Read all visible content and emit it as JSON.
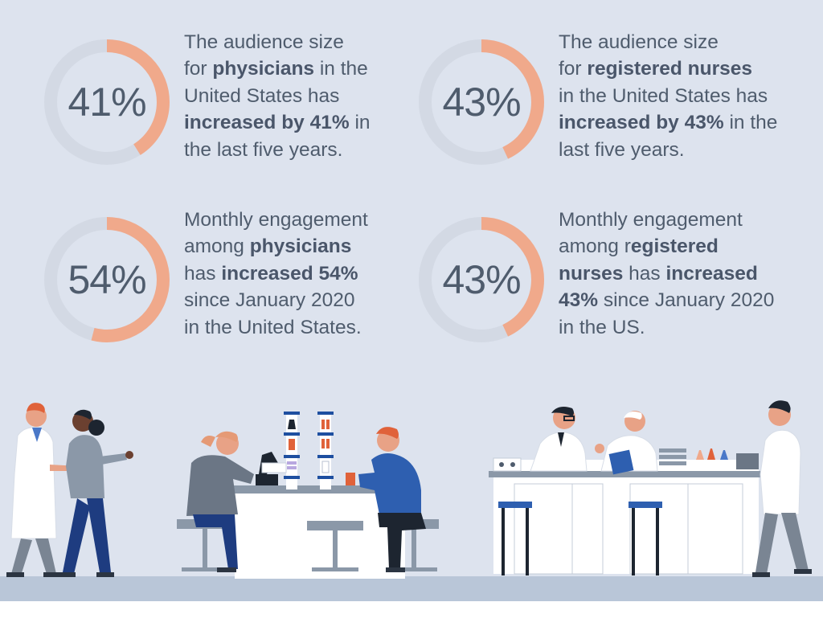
{
  "colors": {
    "ring_track": "#d3d9e4",
    "ring_fill": "#f0a98b",
    "text": "#4f5c6d",
    "background": "#dde3ee"
  },
  "stats": [
    {
      "id": "physicians-audience",
      "percent_label": "41%",
      "fraction": 0.41,
      "lines": [
        [
          {
            "t": "The audience size",
            "b": false
          }
        ],
        [
          {
            "t": "for ",
            "b": false
          },
          {
            "t": "physicians",
            "b": true
          },
          {
            "t": " in the",
            "b": false
          }
        ],
        [
          {
            "t": "United States has",
            "b": false
          }
        ],
        [
          {
            "t": "increased by 41%",
            "b": true
          },
          {
            "t": " in",
            "b": false
          }
        ],
        [
          {
            "t": "the last five years.",
            "b": false
          }
        ]
      ]
    },
    {
      "id": "nurses-audience",
      "percent_label": "43%",
      "fraction": 0.43,
      "lines": [
        [
          {
            "t": "The audience size",
            "b": false
          }
        ],
        [
          {
            "t": "for ",
            "b": false
          },
          {
            "t": "registered nurses",
            "b": true
          }
        ],
        [
          {
            "t": "in the United States has",
            "b": false
          }
        ],
        [
          {
            "t": "increased by 43%",
            "b": true
          },
          {
            "t": " in the",
            "b": false
          }
        ],
        [
          {
            "t": "last five years.",
            "b": false
          }
        ]
      ]
    },
    {
      "id": "physicians-engagement",
      "percent_label": "54%",
      "fraction": 0.54,
      "lines": [
        [
          {
            "t": "Monthly engagement",
            "b": false
          }
        ],
        [
          {
            "t": "among ",
            "b": false
          },
          {
            "t": "physicians",
            "b": true
          }
        ],
        [
          {
            "t": "has ",
            "b": false
          },
          {
            "t": "increased 54%",
            "b": true
          }
        ],
        [
          {
            "t": "since January 2020",
            "b": false
          }
        ],
        [
          {
            "t": "in the United States.",
            "b": false
          }
        ]
      ]
    },
    {
      "id": "nurses-engagement",
      "percent_label": "43%",
      "fraction": 0.43,
      "lines": [
        [
          {
            "t": "Monthly engagement",
            "b": false
          }
        ],
        [
          {
            "t": "among r",
            "b": false
          },
          {
            "t": "egistered",
            "b": true
          }
        ],
        [
          {
            "t": "nurses",
            "b": true
          },
          {
            "t": " has ",
            "b": false
          },
          {
            "t": "increased",
            "b": true
          }
        ],
        [
          {
            "t": "43%",
            "b": true
          },
          {
            "t": " since January 2020",
            "b": false
          }
        ],
        [
          {
            "t": "in the US.",
            "b": false
          }
        ]
      ]
    }
  ]
}
